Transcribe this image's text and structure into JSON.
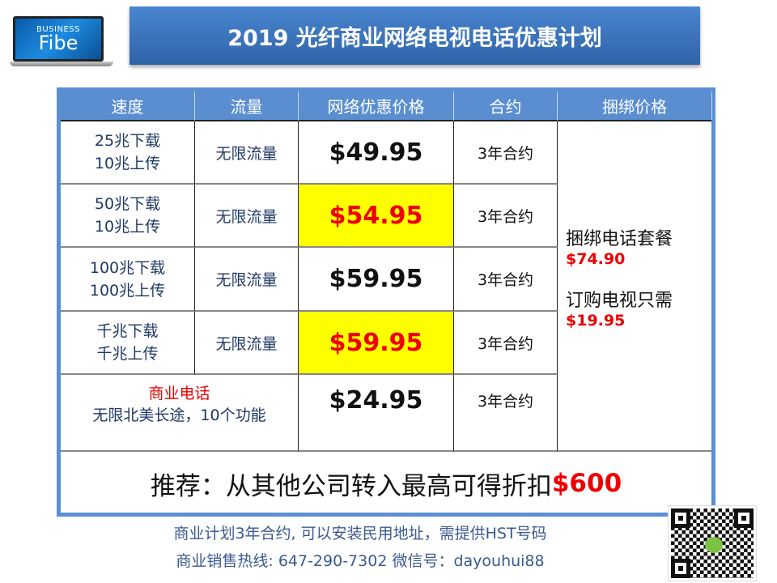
{
  "logo": {
    "line1": "BUSINESS",
    "line2": "Fibe"
  },
  "title": "2019 光纤商业网络电视电话优惠计划",
  "table": {
    "headers": [
      "速度",
      "流量",
      "网络优惠价格",
      "合约",
      "捆绑价格"
    ],
    "rows": [
      {
        "speed": [
          "25兆下载",
          "10兆上传"
        ],
        "data": "无限流量",
        "price": "$49.95",
        "highlight": false,
        "contract": "3年合约"
      },
      {
        "speed": [
          "50兆下载",
          "10兆上传"
        ],
        "data": "无限流量",
        "price": "$54.95",
        "highlight": true,
        "contract": "3年合约"
      },
      {
        "speed": [
          "100兆下载",
          "100兆上传"
        ],
        "data": "无限流量",
        "price": "$59.95",
        "highlight": false,
        "contract": "3年合约"
      },
      {
        "speed": [
          "千兆下载",
          "千兆上传"
        ],
        "data": "无限流量",
        "price": "$59.95",
        "highlight": true,
        "contract": "3年合约"
      }
    ],
    "phone": {
      "title": "商业电话",
      "desc": "无限北美长途，10个功能",
      "price": "$24.95",
      "contract": "3年合约"
    },
    "bundle": {
      "phone_label": "捆绑电话套餐",
      "phone_price": "$74.90",
      "tv_label": "订购电视只需",
      "tv_price": "$19.95"
    },
    "promo": {
      "text": "推荐：从其他公司转入最高可得折扣",
      "amount": "$600"
    }
  },
  "footer": {
    "line1": "商业计划3年合约, 可以安装民用地址，需提供HST号码",
    "line2": "商业销售热线: 647-290-7302    微信号：dayouhui88"
  },
  "colors": {
    "header": "#5a8ed1",
    "highlight": "#ffff00",
    "price_red": "#e00000"
  }
}
